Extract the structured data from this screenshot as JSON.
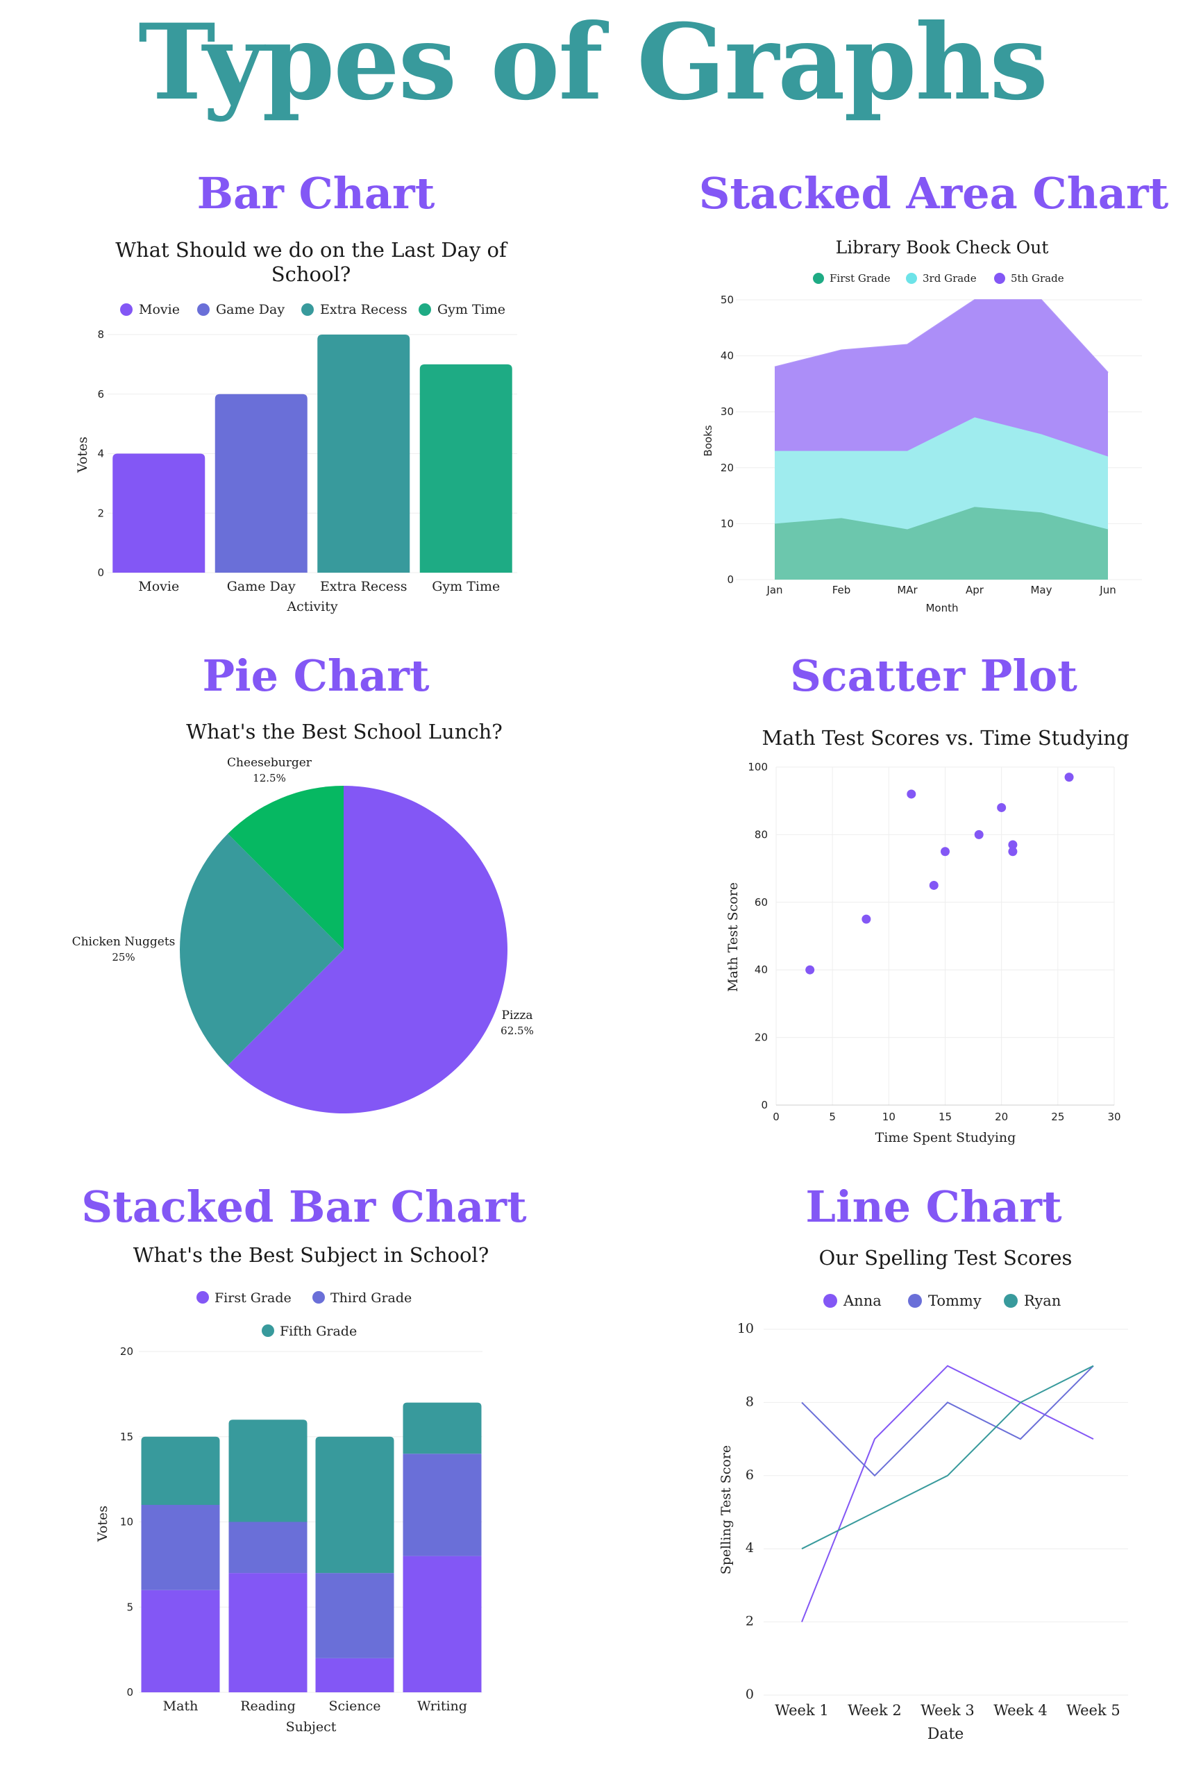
{
  "page": {
    "title": "Types of Graphs"
  },
  "colors": {
    "title": "#389a9c",
    "section": "#8357f5",
    "purple": "#8357f5",
    "indigo": "#6a6fd8",
    "teal": "#389a9c",
    "green": "#1eab84",
    "pie_green": "#06b862",
    "area_green": "#6cc7ad",
    "area_cyan": "#9fecee",
    "area_purple": "#ac8ef8"
  },
  "sections": {
    "bar": "Bar Chart",
    "area": "Stacked Area Chart",
    "pie": "Pie Chart",
    "scatter": "Scatter Plot",
    "stacked_bar": "Stacked Bar Chart",
    "line": "Line Chart"
  },
  "chart_data": [
    {
      "type": "bar",
      "title": [
        "What Should we do on the Last Day of",
        "School?"
      ],
      "categories": [
        "Movie",
        "Game Day",
        "Extra Recess",
        "Gym Time"
      ],
      "values": [
        4,
        6,
        8,
        7
      ],
      "legend": [
        "Movie",
        "Game Day",
        "Extra Recess",
        "Gym Time"
      ],
      "xlabel": "Activity",
      "ylabel": "Votes",
      "ylim": [
        0,
        8
      ],
      "yticks": [
        0,
        2,
        4,
        6,
        8
      ],
      "legend_position": "top"
    },
    {
      "type": "area",
      "title": "Library Book Check Out",
      "categories": [
        "Jan",
        "Feb",
        "MAr",
        "Apr",
        "May",
        "Jun"
      ],
      "series": [
        {
          "name": "First Grade",
          "values": [
            10,
            11,
            9,
            13,
            12,
            9
          ]
        },
        {
          "name": "3rd Grade",
          "values": [
            13,
            12,
            14,
            16,
            14,
            13
          ]
        },
        {
          "name": "5th Grade",
          "values": [
            15,
            18,
            19,
            21,
            24,
            15
          ]
        }
      ],
      "xlabel": "Month",
      "ylabel": "Books",
      "ylim": [
        0,
        50
      ],
      "yticks": [
        0,
        10,
        20,
        30,
        40,
        50
      ],
      "stacked": true,
      "legend_position": "top"
    },
    {
      "type": "pie",
      "title": "What's the Best School Lunch?",
      "slices": [
        {
          "label": "Pizza",
          "value": 62.5,
          "text": "62.5%"
        },
        {
          "label": "Chicken Nuggets",
          "value": 25,
          "text": "25%"
        },
        {
          "label": "Cheeseburger",
          "value": 12.5,
          "text": "12.5%"
        }
      ]
    },
    {
      "type": "scatter",
      "title": "Math Test Scores vs. Time Studying",
      "points": [
        [
          3,
          40
        ],
        [
          8,
          55
        ],
        [
          12,
          92
        ],
        [
          14,
          65
        ],
        [
          15,
          75
        ],
        [
          18,
          80
        ],
        [
          20,
          88
        ],
        [
          21,
          77
        ],
        [
          21,
          75
        ],
        [
          26,
          97
        ]
      ],
      "xlabel": "Time Spent Studying",
      "ylabel": "Math Test Score",
      "xlim": [
        0,
        30
      ],
      "ylim": [
        0,
        100
      ],
      "xticks": [
        0,
        5,
        10,
        15,
        20,
        25,
        30
      ],
      "yticks": [
        0,
        20,
        40,
        60,
        80,
        100
      ],
      "grid": true
    },
    {
      "type": "bar",
      "title": "What's the Best Subject in School?",
      "categories": [
        "Math",
        "Reading",
        "Science",
        "Writing"
      ],
      "series": [
        {
          "name": "First Grade",
          "values": [
            6,
            7,
            2,
            8
          ]
        },
        {
          "name": "Third Grade",
          "values": [
            5,
            3,
            5,
            6
          ]
        },
        {
          "name": "Fifth Grade",
          "values": [
            4,
            6,
            8,
            3
          ]
        }
      ],
      "xlabel": "Subject",
      "ylabel": "Votes",
      "ylim": [
        0,
        20
      ],
      "yticks": [
        0,
        5,
        10,
        15,
        20
      ],
      "stacked": true,
      "legend_position": "top"
    },
    {
      "type": "line",
      "title": "Our Spelling Test Scores",
      "categories": [
        "Week 1",
        "Week 2",
        "Week 3",
        "Week 4",
        "Week 5"
      ],
      "series": [
        {
          "name": "Anna",
          "values": [
            2,
            7,
            9,
            8,
            7
          ]
        },
        {
          "name": "Tommy",
          "values": [
            8,
            6,
            8,
            7,
            9
          ]
        },
        {
          "name": "Ryan",
          "values": [
            4,
            5,
            6,
            8,
            9
          ]
        }
      ],
      "xlabel": "Date",
      "ylabel": "Spelling Test Score",
      "ylim": [
        0,
        10
      ],
      "yticks": [
        0,
        2,
        4,
        6,
        8,
        10
      ],
      "legend_position": "top"
    }
  ]
}
